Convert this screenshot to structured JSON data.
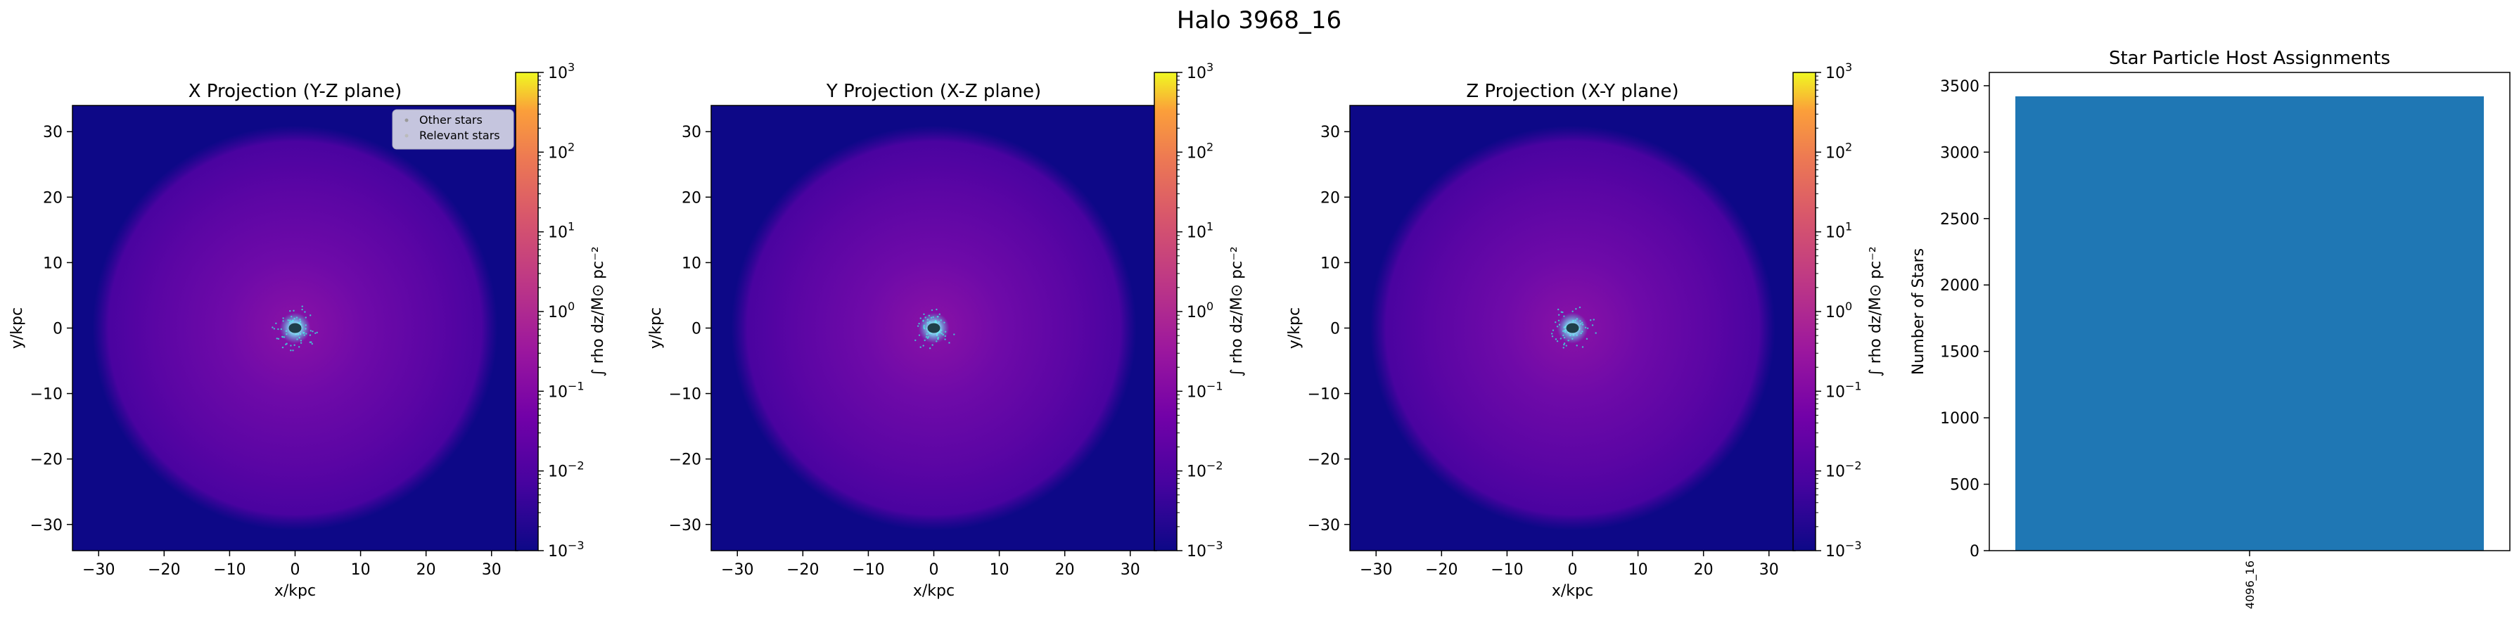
{
  "figure": {
    "title": "Halo 3968_16"
  },
  "panels": [
    {
      "title": "X Projection (Y-Z plane)",
      "xlabel": "x/kpc",
      "ylabel": "y/kpc"
    },
    {
      "title": "Y Projection (X-Z plane)",
      "xlabel": "x/kpc",
      "ylabel": "y/kpc"
    },
    {
      "title": "Z Projection (X-Y plane)",
      "xlabel": "x/kpc",
      "ylabel": "y/kpc"
    }
  ],
  "projection_axis": {
    "xlim": [
      -34,
      34
    ],
    "ylim": [
      -34,
      34
    ],
    "ticks": [
      -30,
      -20,
      -10,
      0,
      10,
      20,
      30
    ],
    "tick_labels": [
      "−30",
      "−20",
      "−10",
      "0",
      "10",
      "20",
      "30"
    ]
  },
  "colorbar": {
    "label": "∫ rho dz/M⊙ pc⁻²",
    "scale": "log",
    "range": [
      0.001,
      1000
    ],
    "colormap": "plasma",
    "tick_bases": [
      "10",
      "10",
      "10",
      "10",
      "10",
      "10",
      "10"
    ],
    "tick_exps": [
      "−3",
      "−2",
      "−1",
      "0",
      "1",
      "2",
      "3"
    ]
  },
  "legend": {
    "placement": "upper-right",
    "items": [
      "Other stars",
      "Relevant stars"
    ]
  },
  "colors": {
    "bar": "#1f77b4",
    "background_low": "#0d0887",
    "halo": "#6a00a8",
    "stars": "#3fd6d8"
  },
  "chart_data": [
    {
      "type": "heatmap",
      "title": "X Projection (Y-Z plane)",
      "xlabel": "x/kpc",
      "ylabel": "y/kpc",
      "xlim": [
        -34,
        34
      ],
      "ylim": [
        -34,
        34
      ],
      "colorbar_range": [
        0.001,
        1000
      ],
      "scale": "log",
      "legend": [
        "Other stars",
        "Relevant stars"
      ]
    },
    {
      "type": "heatmap",
      "title": "Y Projection (X-Z plane)",
      "xlabel": "x/kpc",
      "ylabel": "y/kpc",
      "xlim": [
        -34,
        34
      ],
      "ylim": [
        -34,
        34
      ],
      "colorbar_range": [
        0.001,
        1000
      ],
      "scale": "log"
    },
    {
      "type": "heatmap",
      "title": "Z Projection (X-Y plane)",
      "xlabel": "x/kpc",
      "ylabel": "y/kpc",
      "xlim": [
        -34,
        34
      ],
      "ylim": [
        -34,
        34
      ],
      "colorbar_range": [
        0.001,
        1000
      ],
      "scale": "log"
    },
    {
      "type": "bar",
      "title": "Star Particle Host Assignments",
      "xlabel": "",
      "ylabel": "Number of Stars",
      "categories": [
        "4096_16"
      ],
      "values": [
        3420
      ],
      "ylim": [
        0,
        3600
      ],
      "yticks": [
        0,
        500,
        1000,
        1500,
        2000,
        2500,
        3000,
        3500
      ]
    }
  ]
}
